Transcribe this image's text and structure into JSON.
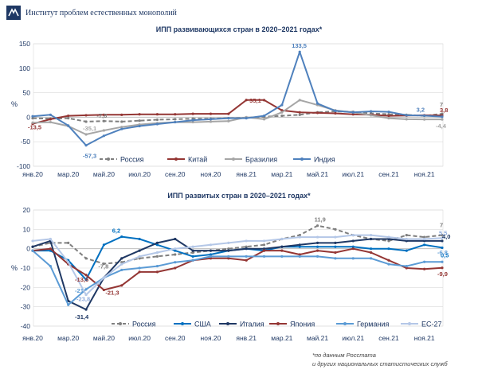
{
  "header": {
    "org_name": "Институт проблем естественных монополий"
  },
  "footnote": {
    "line1": "*по данным Росстата",
    "line2": "и других национальных статистических служб"
  },
  "chart_data": [
    {
      "type": "line",
      "title": "ИПП развивающихся стран в 2020–2021 годах*",
      "ylabel": "%",
      "ylim": [
        -100,
        150
      ],
      "yticks": [
        -100,
        -50,
        0,
        50,
        100,
        150
      ],
      "x_tick_labels": [
        "янв.20",
        "мар.20",
        "май.20",
        "июл.20",
        "сен.20",
        "ноя.20",
        "янв.21",
        "мар.21",
        "май.21",
        "июл.21",
        "сен.21",
        "ноя.21"
      ],
      "grid": true,
      "legend_position": "bottom",
      "series": [
        {
          "name": "Россия",
          "color": "#7f7f7f",
          "dashed": true,
          "values": [
            -2,
            -3,
            -2,
            -9,
            -7.8,
            -9,
            -7,
            -5,
            -4,
            -3,
            -3,
            -2,
            -1,
            1,
            3,
            5,
            10,
            12,
            11,
            8,
            6,
            5,
            3,
            7
          ]
        },
        {
          "name": "Китай",
          "color": "#943634",
          "dashed": false,
          "values": [
            -13.5,
            -4,
            3,
            4,
            5,
            5,
            6,
            6,
            6,
            7,
            7,
            7,
            35.1,
            35,
            14,
            10,
            9,
            8,
            6,
            5,
            3,
            3.5,
            4,
            3.8
          ]
        },
        {
          "name": "Бразилия",
          "color": "#a6a6a6",
          "dashed": false,
          "values": [
            -11,
            -10,
            -18,
            -35.1,
            -27,
            -20,
            -15,
            -12,
            -10,
            -10,
            -9,
            -8,
            0,
            -4,
            10,
            35,
            25,
            14,
            10,
            4,
            -2,
            -4,
            -4.4,
            -4.4
          ]
        },
        {
          "name": "Индия",
          "color": "#4f81bd",
          "dashed": false,
          "values": [
            2,
            5,
            -17,
            -57.3,
            -38,
            -24,
            -18,
            -14,
            -10,
            -6,
            -4,
            -2,
            -2,
            3,
            25,
            133.5,
            28,
            13,
            10,
            12,
            11,
            4,
            3.2,
            1
          ]
        }
      ],
      "data_labels": [
        {
          "series": "Китай",
          "index": 0,
          "text": "-13,5"
        },
        {
          "series": "Бразилия",
          "index": 3,
          "text": "-35,1"
        },
        {
          "series": "Индия",
          "index": 3,
          "text": "-57,3"
        },
        {
          "series": "Россия",
          "index": 4,
          "text": "-7,8"
        },
        {
          "series": "Китай",
          "index": 12,
          "text": "35,1"
        },
        {
          "series": "Индия",
          "index": 15,
          "text": "133,5"
        },
        {
          "series": "Индия",
          "index": 22,
          "text": "3,2"
        },
        {
          "series": "Китай",
          "index": 23,
          "text": "3,8"
        },
        {
          "series": "Россия",
          "index": 23,
          "text": "7"
        },
        {
          "series": "Бразилия",
          "index": 23,
          "text": "-4,4"
        }
      ]
    },
    {
      "type": "line",
      "title": "ИПП развитых стран в 2020–2021 годах*",
      "ylabel": "%",
      "ylim": [
        -40,
        20
      ],
      "yticks": [
        -40,
        -30,
        -20,
        -10,
        0,
        10,
        20
      ],
      "x_tick_labels": [
        "янв.20",
        "мар.20",
        "май.20",
        "июл.20",
        "сен.20",
        "ноя.20",
        "янв.21",
        "мар.21",
        "май.21",
        "июл.21",
        "сен.21",
        "ноя.21"
      ],
      "grid": true,
      "legend_position": "bottom",
      "series": [
        {
          "name": "Россия",
          "color": "#7f7f7f",
          "dashed": true,
          "values": [
            1,
            3,
            3,
            -5,
            -7.8,
            -7,
            -5,
            -4,
            -3,
            -2,
            -1,
            0,
            1,
            2,
            5,
            7,
            11.9,
            10,
            7,
            5,
            4,
            7,
            6,
            7
          ]
        },
        {
          "name": "США",
          "color": "#0070c0",
          "dashed": false,
          "values": [
            -1,
            -1,
            -6,
            -16,
            2,
            6.2,
            5,
            2,
            -1,
            -4,
            -3,
            -1,
            0,
            -1,
            1,
            1,
            1,
            1,
            1,
            0,
            0,
            -1,
            2,
            0.5
          ]
        },
        {
          "name": "Италия",
          "color": "#1f3864",
          "dashed": false,
          "values": [
            1,
            4,
            -27,
            -31.4,
            -15,
            -5,
            -1,
            3,
            5,
            -1,
            -1,
            -1,
            0,
            0,
            1,
            2,
            3,
            3,
            4,
            5,
            5,
            4,
            4,
            4.0
          ]
        },
        {
          "name": "Япония",
          "color": "#943634",
          "dashed": false,
          "values": [
            -1,
            0,
            -8,
            -13.6,
            -21.3,
            -19,
            -12,
            -12,
            -10,
            -6,
            -5,
            -5,
            -6,
            -1,
            -1,
            -3,
            -1,
            -2,
            0,
            -2,
            -6,
            -10,
            -10.5,
            -9.9
          ]
        },
        {
          "name": "Германия",
          "color": "#5b9bd5",
          "dashed": false,
          "values": [
            -1,
            -9,
            -29,
            -21,
            -15,
            -11,
            -10,
            -9,
            -7,
            -6,
            -4,
            -4,
            -4,
            -4,
            -4,
            -4,
            -4,
            -5,
            -5,
            -5,
            -8,
            -9,
            -6.8,
            -6.8
          ]
        },
        {
          "name": "ЕС-27",
          "color": "#b4c7e7",
          "dashed": false,
          "values": [
            4,
            5,
            -7,
            -23.8,
            -15,
            -8,
            -4,
            -2,
            0,
            1,
            2,
            3,
            4,
            4,
            5,
            6,
            6,
            6,
            7,
            7,
            6,
            5,
            5,
            5.5
          ]
        }
      ],
      "data_labels": [
        {
          "series": "Россия",
          "index": 16,
          "text": "11,9"
        },
        {
          "series": "Россия",
          "index": 23,
          "text": "7"
        },
        {
          "series": "ЕС-27",
          "index": 23,
          "text": "5,5"
        },
        {
          "series": "США",
          "index": 5,
          "text": "6,2"
        },
        {
          "series": "Италия",
          "index": 23,
          "text": "4,0"
        },
        {
          "series": "США",
          "index": 23,
          "text": "0,5"
        },
        {
          "series": "Германия",
          "index": 23,
          "text": "-6,8"
        },
        {
          "series": "Россия",
          "index": 4,
          "text": "-7,8"
        },
        {
          "series": "Япония",
          "index": 23,
          "text": "-9,9"
        },
        {
          "series": "Япония",
          "index": 3,
          "text": "-13,6"
        },
        {
          "series": "Германия",
          "index": 3,
          "text": "-21"
        },
        {
          "series": "Япония",
          "index": 4,
          "text": "-21,3"
        },
        {
          "series": "ЕС-27",
          "index": 3,
          "text": "-23,8"
        },
        {
          "series": "Италия",
          "index": 3,
          "text": "-31,4"
        }
      ]
    }
  ]
}
